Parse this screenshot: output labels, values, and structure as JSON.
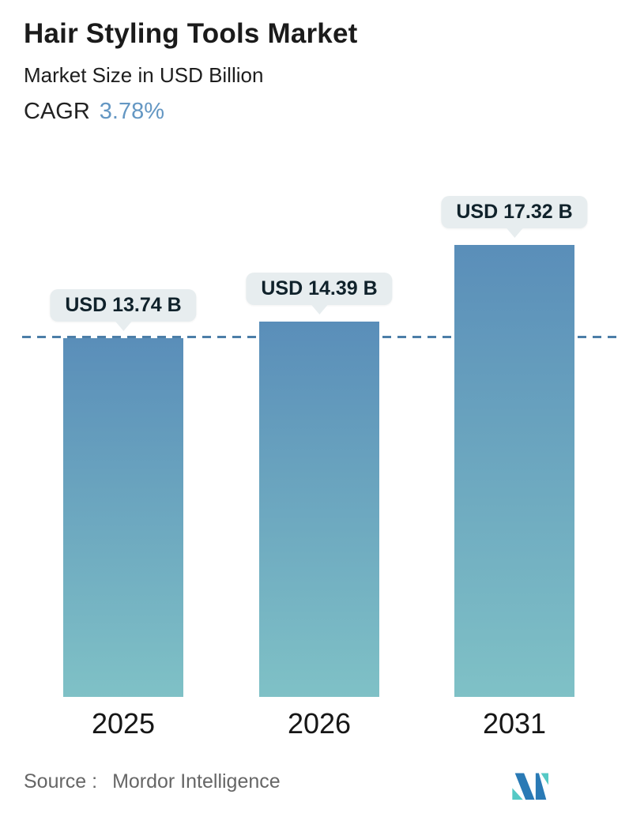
{
  "header": {
    "title": "Hair Styling Tools Market",
    "subtitle": "Market Size in USD Billion",
    "cagr_label": "CAGR",
    "cagr_value": "3.78%"
  },
  "chart_data": {
    "type": "bar",
    "categories": [
      "2025",
      "2026",
      "2031"
    ],
    "values": [
      13.74,
      14.39,
      17.32
    ],
    "value_labels": [
      "USD 13.74 B",
      "USD 14.39 B",
      "USD 17.32 B"
    ],
    "title": "Hair Styling Tools Market",
    "ylabel": "Market Size in USD Billion",
    "ylim": [
      0,
      18.5
    ],
    "grid": false,
    "legend": "none",
    "reference_line": {
      "value": 13.74,
      "style": "dashed"
    },
    "colors": {
      "bar_gradient_top": "#5a8eb9",
      "bar_gradient_bottom": "#7fc1c6",
      "dashed_line": "#4c7ea8",
      "callout_background": "#e7edef",
      "cagr_accent": "#6497c3",
      "text_dark": "#1b1b1b",
      "source_gray": "#666666",
      "logo_blue": "#2a7ab5",
      "logo_teal": "#55c9c5"
    }
  },
  "footer": {
    "source_label": "Source :",
    "source_value": "Mordor Intelligence",
    "logo_name": "mordor-intelligence-logo"
  }
}
